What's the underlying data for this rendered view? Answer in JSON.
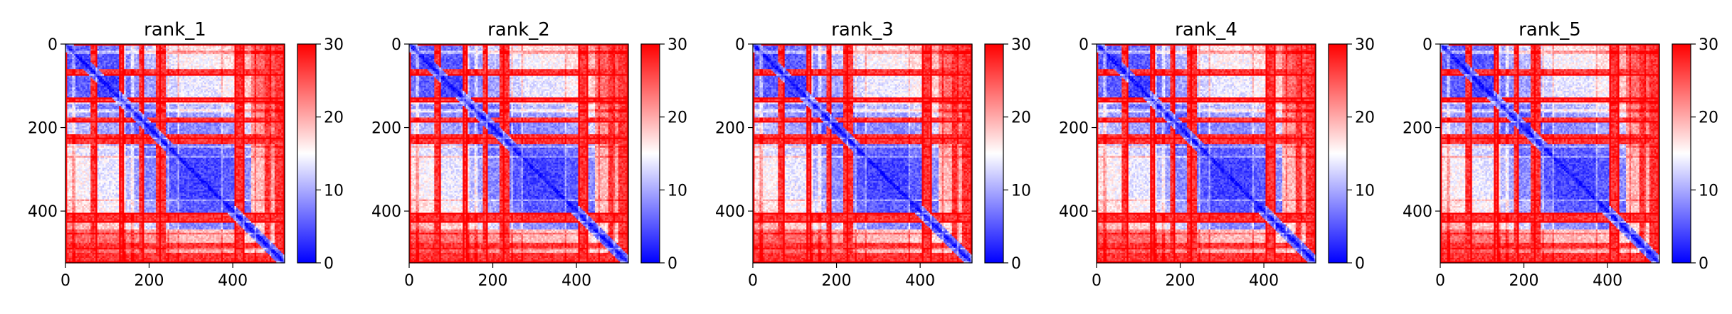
{
  "chart_data": {
    "type": "heatmap",
    "colormap": {
      "colors": [
        "#0000ff",
        "#ffffff",
        "#ff0000"
      ],
      "vmin": 0,
      "vmax": 30
    },
    "colorbar_ticks": [
      "0",
      "10",
      "20",
      "30"
    ],
    "matrix_size": 524,
    "axis_ticks": {
      "x": [
        {
          "value": 0,
          "label": "0"
        },
        {
          "value": 200,
          "label": "200"
        },
        {
          "value": 400,
          "label": "400"
        }
      ],
      "y": [
        {
          "value": 0,
          "label": "0"
        },
        {
          "value": 200,
          "label": "200"
        },
        {
          "value": 400,
          "label": "400"
        }
      ]
    },
    "panels": [
      {
        "title": "rank_1"
      },
      {
        "title": "rank_2"
      },
      {
        "title": "rank_3"
      },
      {
        "title": "rank_4"
      },
      {
        "title": "rank_5"
      }
    ],
    "segment_boundaries": [
      20,
      75,
      130,
      140,
      160,
      185,
      225,
      245,
      270,
      375,
      405,
      425,
      455,
      490
    ],
    "high_bands": [
      {
        "from": 0,
        "to": 6
      },
      {
        "from": 60,
        "to": 75
      },
      {
        "from": 128,
        "to": 142
      },
      {
        "from": 178,
        "to": 190
      },
      {
        "from": 218,
        "to": 240
      },
      {
        "from": 405,
        "to": 428
      },
      {
        "from": 475,
        "to": 488
      },
      {
        "from": 500,
        "to": 524
      }
    ],
    "right_high_region_from": 445
  }
}
